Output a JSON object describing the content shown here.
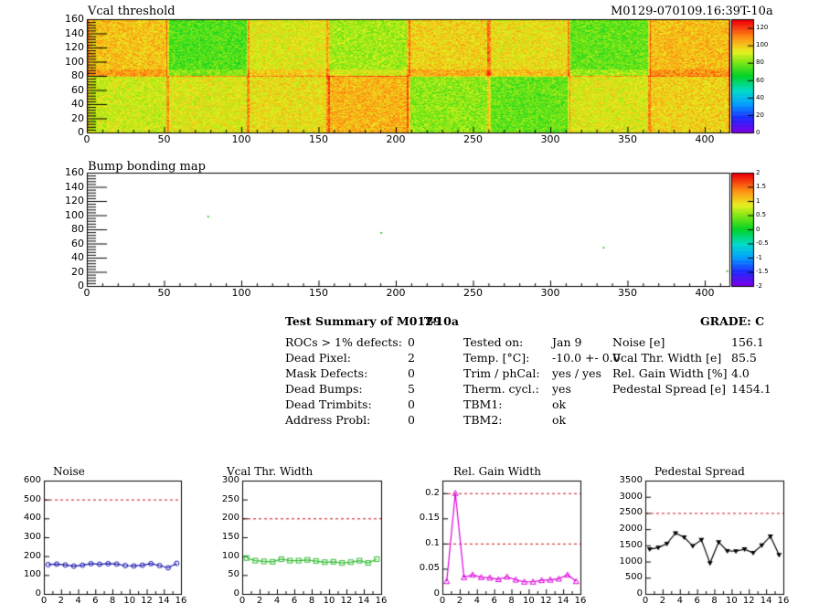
{
  "header": {
    "map1_title": "Vcal threshold",
    "module_id": "M0129-070109.16:39T-10a",
    "map2_title": "Bump bonding map"
  },
  "maps": {
    "x_ticks": [
      "0",
      "50",
      "100",
      "150",
      "200",
      "250",
      "300",
      "350",
      "400"
    ],
    "x_range": [
      0,
      416
    ],
    "y_ticks": [
      "0",
      "20",
      "40",
      "60",
      "80",
      "100",
      "120",
      "140",
      "160"
    ],
    "y_range": [
      0,
      160
    ],
    "map1_scale": [
      "0",
      "20",
      "40",
      "60",
      "80",
      "100",
      "120"
    ],
    "map1_z_range": [
      0,
      130
    ],
    "map2_scale": [
      "-2",
      "-1.5",
      "-1",
      "-0.5",
      "0",
      "0.5",
      "1",
      "1.5",
      "2"
    ],
    "map2_z_range": [
      -2,
      2
    ],
    "map2_points": [
      [
        78,
        99
      ],
      [
        190,
        76
      ],
      [
        334,
        55
      ],
      [
        414,
        22
      ]
    ]
  },
  "summary": {
    "title": "Test Summary of M0129",
    "temp_tag": "T-10a",
    "grade": "GRADE:  C",
    "left": [
      {
        "label": "ROCs > 1% defects:",
        "value": "0"
      },
      {
        "label": "Dead Pixel:",
        "value": "2"
      },
      {
        "label": "Mask Defects:",
        "value": "0"
      },
      {
        "label": "Dead Bumps:",
        "value": "5"
      },
      {
        "label": "Dead Trimbits:",
        "value": "0"
      },
      {
        "label": "Address Probl:",
        "value": "0"
      }
    ],
    "middle": [
      {
        "label": "Tested on:",
        "value": "Jan 9"
      },
      {
        "label": "Temp. [°C]:",
        "value": "-10.0 +- 0.0"
      },
      {
        "label": "Trim / phCal:",
        "value": "yes / yes"
      },
      {
        "label": "Therm. cycl.:",
        "value": "yes"
      },
      {
        "label": "TBM1:",
        "value": "ok"
      },
      {
        "label": "TBM2:",
        "value": "ok"
      }
    ],
    "right": [
      {
        "label": "Noise [e]",
        "value": "156.1"
      },
      {
        "label": "Vcal Thr. Width [e]",
        "value": "85.5"
      },
      {
        "label": "Rel. Gain Width [%]",
        "value": "4.0"
      },
      {
        "label": "Pedestal Spread [e]",
        "value": "1454.1"
      }
    ]
  },
  "colors": {
    "noise": "#1111aa",
    "vcal": "#33bb33",
    "gain": "#dd00dd",
    "pedestal": "#000000",
    "limit": "#cc1111"
  },
  "chart_data": [
    {
      "type": "heatmap",
      "title": "Vcal threshold",
      "x_range": [
        0,
        416
      ],
      "y_range": [
        0,
        160
      ],
      "z_range": [
        0,
        130
      ]
    },
    {
      "type": "heatmap",
      "title": "Bump bonding map",
      "x_range": [
        0,
        416
      ],
      "y_range": [
        0,
        160
      ],
      "z_range": [
        -2,
        2
      ]
    },
    {
      "type": "line",
      "title": "Noise",
      "x": [
        0,
        1,
        2,
        3,
        4,
        5,
        6,
        7,
        8,
        9,
        10,
        11,
        12,
        13,
        14,
        15
      ],
      "values": [
        155,
        158,
        153,
        147,
        152,
        160,
        157,
        160,
        158,
        150,
        148,
        152,
        160,
        150,
        138,
        162
      ],
      "limit": 500,
      "ylim": [
        0,
        600
      ],
      "yticks": [
        "0",
        "100",
        "200",
        "300",
        "400",
        "500",
        "600"
      ],
      "xticks": [
        "0",
        "2",
        "4",
        "6",
        "8",
        "10",
        "12",
        "14",
        "16"
      ]
    },
    {
      "type": "line",
      "title": "Vcal Thr. Width",
      "x": [
        0,
        1,
        2,
        3,
        4,
        5,
        6,
        7,
        8,
        9,
        10,
        11,
        12,
        13,
        14,
        15
      ],
      "values": [
        95,
        88,
        86,
        85,
        92,
        88,
        88,
        90,
        87,
        84,
        85,
        82,
        84,
        88,
        82,
        92
      ],
      "limit": 200,
      "ylim": [
        0,
        300
      ],
      "yticks": [
        "0",
        "50",
        "100",
        "150",
        "200",
        "250",
        "300"
      ],
      "xticks": [
        "0",
        "2",
        "4",
        "6",
        "8",
        "10",
        "12",
        "14",
        "16"
      ]
    },
    {
      "type": "line",
      "title": "Rel. Gain Width",
      "x": [
        0,
        1,
        2,
        3,
        4,
        5,
        6,
        7,
        8,
        9,
        10,
        11,
        12,
        13,
        14,
        15
      ],
      "values": [
        0.025,
        0.2,
        0.033,
        0.038,
        0.033,
        0.032,
        0.029,
        0.034,
        0.028,
        0.024,
        0.024,
        0.027,
        0.028,
        0.03,
        0.038,
        0.025
      ],
      "limits": [
        0.1,
        0.2
      ],
      "ylim": [
        0,
        0.225
      ],
      "yticks": [
        "0",
        "0.05",
        "0.1",
        "0.15",
        "0.2"
      ],
      "xticks": [
        "0",
        "2",
        "4",
        "6",
        "8",
        "10",
        "12",
        "14",
        "16"
      ]
    },
    {
      "type": "line",
      "title": "Pedestal Spread",
      "x": [
        0,
        1,
        2,
        3,
        4,
        5,
        6,
        7,
        8,
        9,
        10,
        11,
        12,
        13,
        14,
        15
      ],
      "values": [
        1380,
        1430,
        1550,
        1880,
        1750,
        1480,
        1670,
        950,
        1600,
        1330,
        1320,
        1380,
        1270,
        1500,
        1780,
        1210
      ],
      "limit": 2500,
      "ylim": [
        0,
        3500
      ],
      "yticks": [
        "0",
        "500",
        "1000",
        "1500",
        "2000",
        "2500",
        "3000",
        "3500"
      ],
      "xticks": [
        "0",
        "2",
        "4",
        "6",
        "8",
        "10",
        "12",
        "14",
        "16"
      ]
    }
  ]
}
